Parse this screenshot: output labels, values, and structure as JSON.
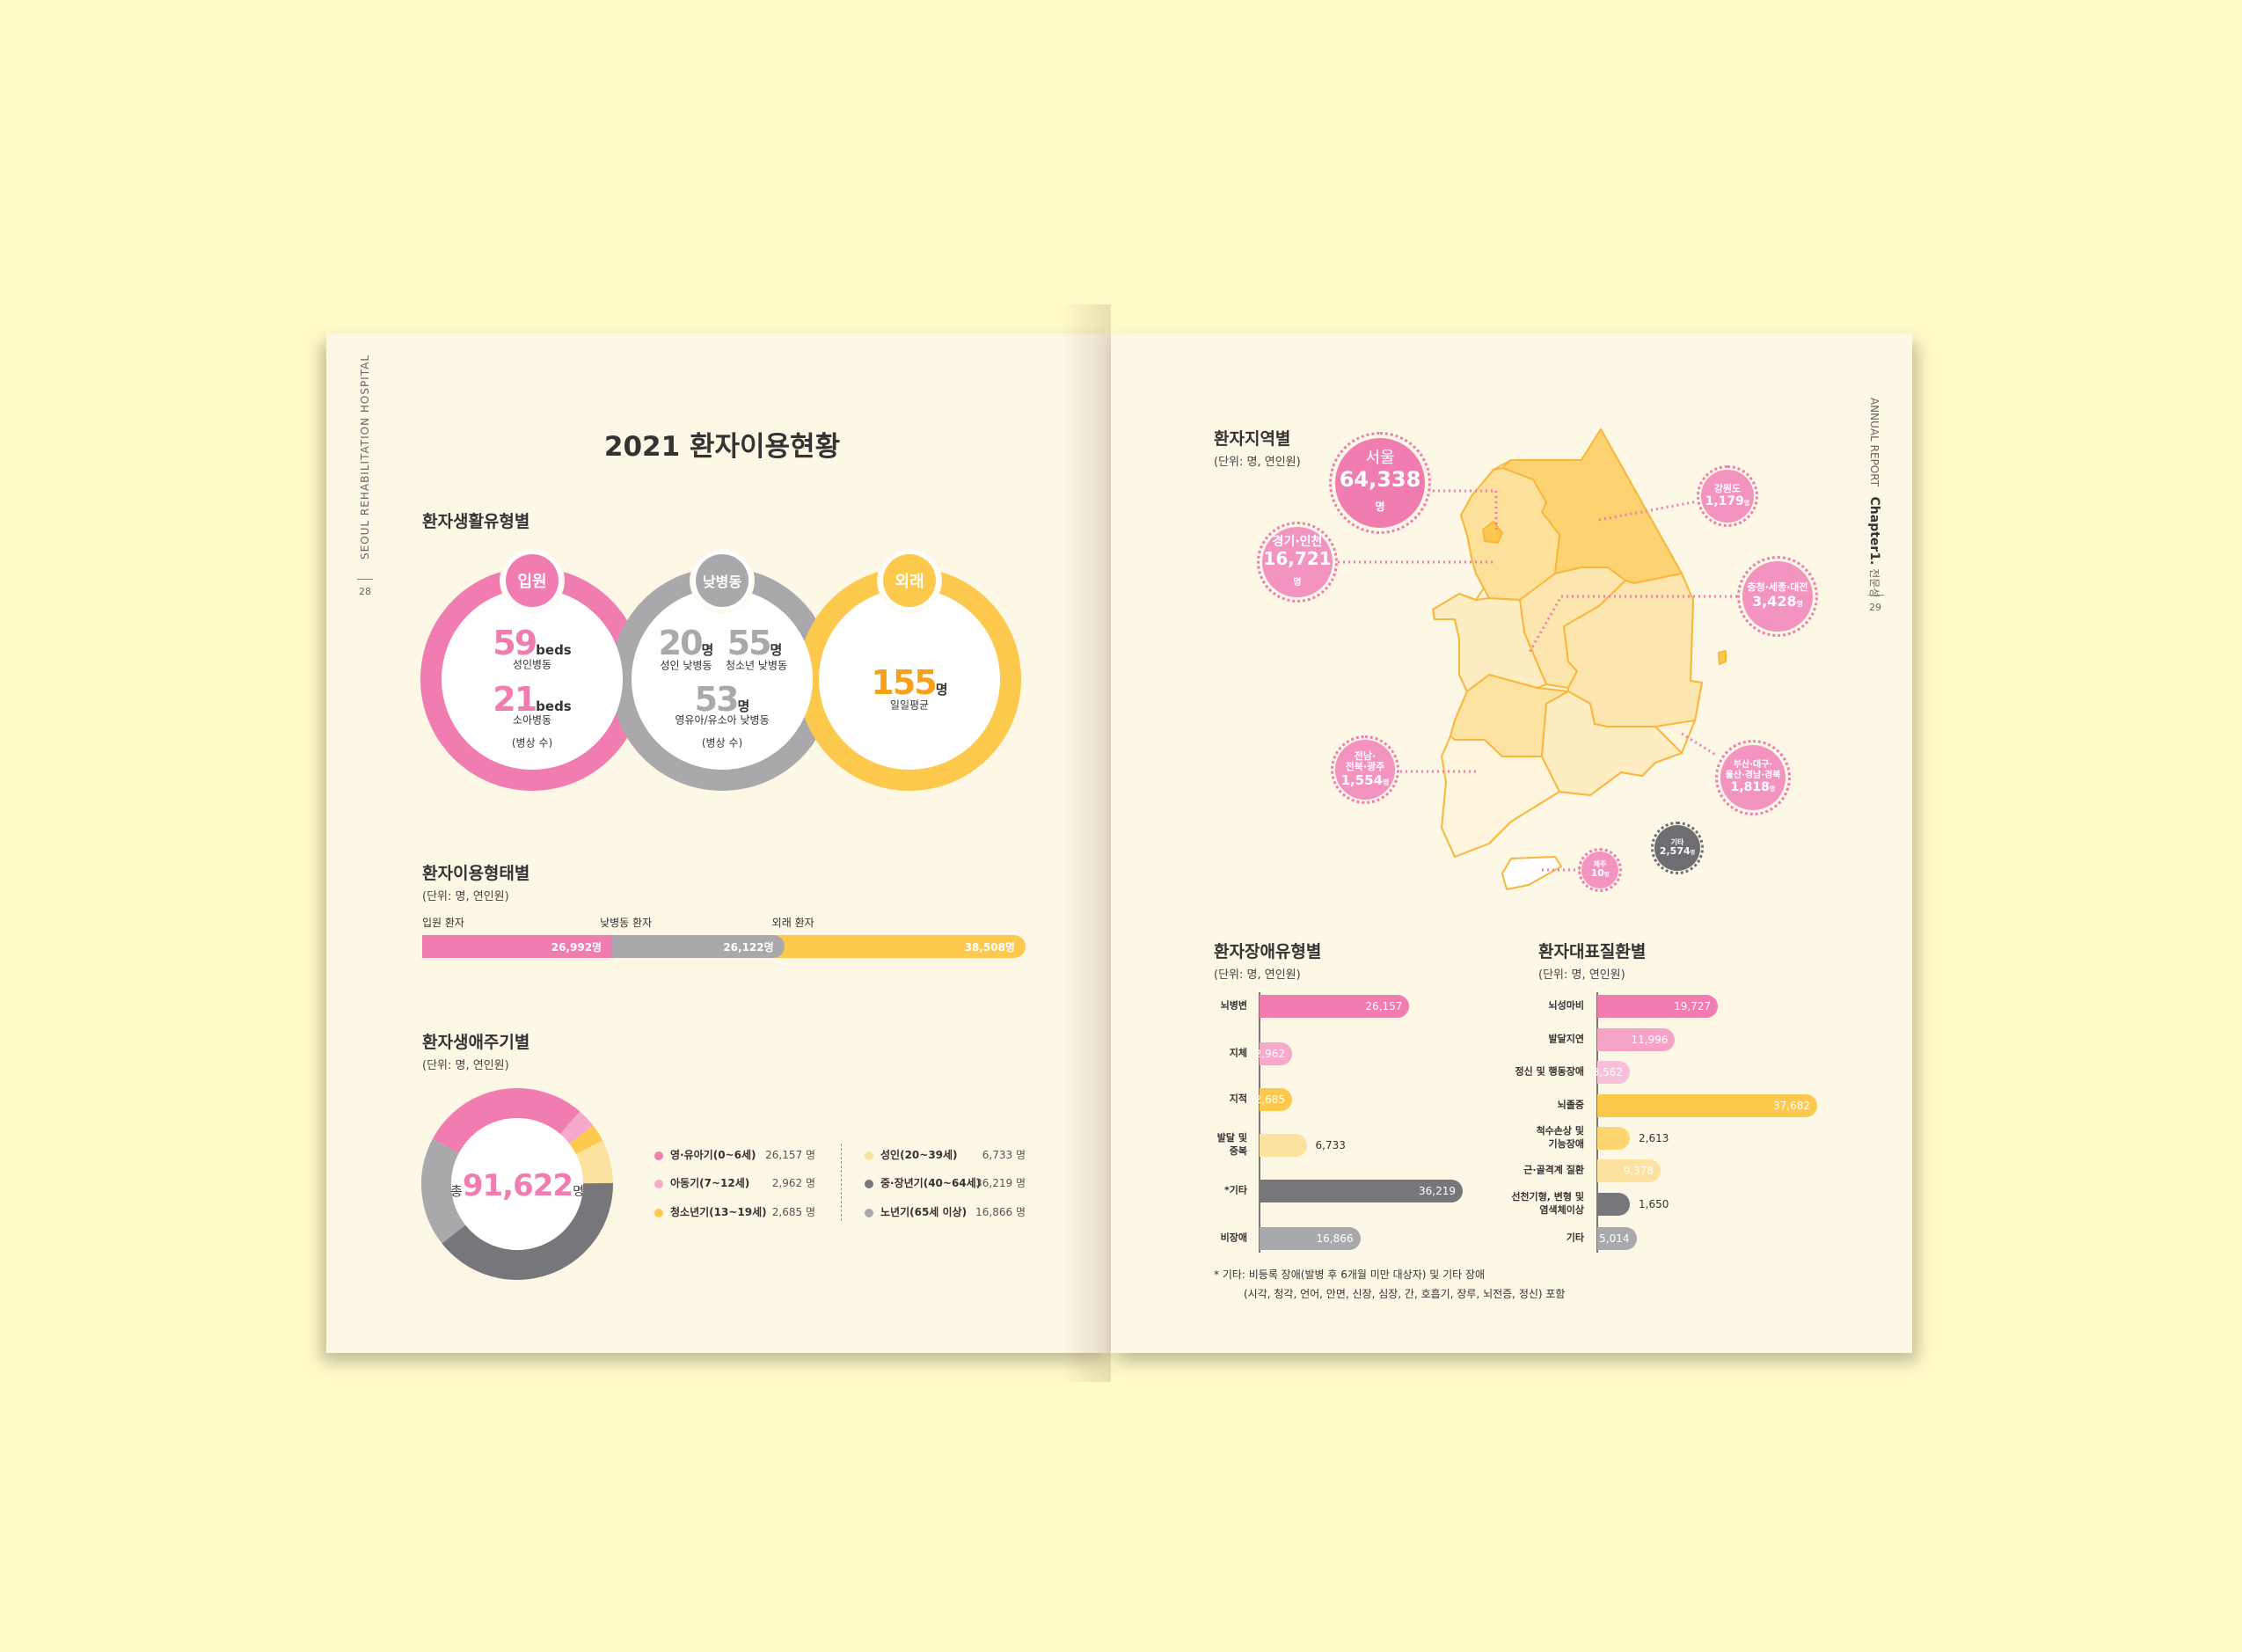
{
  "left_page": {
    "side_text": "SEOUL REHABILITATION HOSPITAL",
    "page_number": "28",
    "title": "2021 환자이용현황",
    "living_type": {
      "heading": "환자생활유형별",
      "inpatient": {
        "badge": "입원",
        "items": [
          {
            "value": "59",
            "suffix": "beds",
            "label": "성인병동"
          },
          {
            "value": "21",
            "suffix": "beds",
            "label": "소아병동"
          }
        ],
        "note": "(병상 수)"
      },
      "daycare": {
        "badge": "낮병동",
        "items": [
          {
            "value": "20",
            "suffix": "명",
            "label": "성인 낮병동"
          },
          {
            "value": "55",
            "suffix": "명",
            "label": "청소년 낮병동"
          },
          {
            "value": "53",
            "suffix": "명",
            "label": "영유아/유소아 낮병동"
          }
        ],
        "note": "(병상 수)"
      },
      "outpatient": {
        "badge": "외래",
        "value": "155",
        "suffix": "명",
        "label": "일일평균"
      }
    },
    "usage_type": {
      "heading": "환자이용형태별",
      "unit": "(단위: 명, 연인원)",
      "segments": [
        {
          "label": "입원 환자",
          "value": 26992,
          "display": "26,992명",
          "color": "#f07cb0"
        },
        {
          "label": "낮병동 환자",
          "value": 26122,
          "display": "26,122명",
          "color": "#a9a9ac"
        },
        {
          "label": "외래 환자",
          "value": 38508,
          "display": "38,508명",
          "color": "#fcc94c"
        }
      ]
    },
    "life_cycle": {
      "heading": "환자생애주기별",
      "unit": "(단위: 명, 연인원)",
      "total_prefix": "총",
      "total": "91,622",
      "total_suffix": "명",
      "legend": [
        {
          "label": "영·유아기(0~6세)",
          "value": 26157,
          "display": "26,157 명",
          "color": "#f07cb0"
        },
        {
          "label": "아동기(7~12세)",
          "value": 2962,
          "display": "2,962 명",
          "color": "#f5aacb"
        },
        {
          "label": "청소년기(13~19세)",
          "value": 2685,
          "display": "2,685 명",
          "color": "#fcc94c"
        },
        {
          "label": "성인(20~39세)",
          "value": 6733,
          "display": "6,733 명",
          "color": "#fde29f"
        },
        {
          "label": "중·장년기(40~64세)",
          "value": 36219,
          "display": "36,219 명",
          "color": "#77777b"
        },
        {
          "label": "노년기(65세 이상)",
          "value": 16866,
          "display": "16,866 명",
          "color": "#a9a9ac"
        }
      ]
    }
  },
  "right_page": {
    "side_text": "ANNUAL REPORT",
    "chapter": "Chapter1.",
    "chapter_name": "전문성",
    "page_number": "29",
    "region": {
      "heading": "환자지역별",
      "unit": "(단위: 명, 연인원)",
      "bubbles": [
        {
          "name": "서울",
          "value": "64,338",
          "suffix": "명",
          "color": "#f07cb0"
        },
        {
          "name": "경기·인천",
          "value": "16,721",
          "suffix": "명",
          "color": "#f293c0"
        },
        {
          "name": "강원도",
          "value": "1,179",
          "suffix": "명",
          "color": "#f293c0"
        },
        {
          "name": "충청·세종·대전",
          "value": "3,428",
          "suffix": "명",
          "color": "#f293c0"
        },
        {
          "name": "전남·\n전북·광주",
          "value": "1,554",
          "suffix": "명",
          "color": "#f293c0"
        },
        {
          "name": "부산·대구·\n울산·경남·경북",
          "value": "1,818",
          "suffix": "명",
          "color": "#f293c0"
        },
        {
          "name": "기타",
          "value": "2,574",
          "suffix": "명",
          "color": "#6e6e72"
        },
        {
          "name": "제주",
          "value": "10",
          "suffix": "명",
          "color": "#f293c0"
        }
      ]
    },
    "disability": {
      "heading": "환자장애유형별",
      "unit": "(단위: 명, 연인원)",
      "bars": [
        {
          "label": "뇌병변",
          "value": 26157,
          "display": "26,157",
          "color": "#f07cb0"
        },
        {
          "label": "지체",
          "value": 2962,
          "display": "2,962",
          "color": "#f5aacb"
        },
        {
          "label": "지적",
          "value": 2685,
          "display": "2,685",
          "color": "#fcc94c"
        },
        {
          "label": "발달 및\n중복",
          "value": 6733,
          "display": "6,733",
          "color": "#fde29f"
        },
        {
          "label": "*기타",
          "value": 36219,
          "display": "36,219",
          "color": "#77777b"
        },
        {
          "label": "비장애",
          "value": 16866,
          "display": "16,866",
          "color": "#a9a9ac"
        }
      ],
      "footnote_1": "* 기타: 비등록 장애(발병 후 6개월 미만 대상자) 및 기타 장애",
      "footnote_2": "(시각, 청각, 언어, 안면, 신장, 심장, 간, 호흡기, 장루, 뇌전증, 정신) 포함"
    },
    "disease": {
      "heading": "환자대표질환별",
      "unit": "(단위: 명, 연인원)",
      "bars": [
        {
          "label": "뇌성마비",
          "value": 19727,
          "display": "19,727",
          "color": "#f07cb0"
        },
        {
          "label": "발달지연",
          "value": 11996,
          "display": "11,996",
          "color": "#f5a3c7"
        },
        {
          "label": "정신 및 행동장애",
          "value": 3562,
          "display": "3,562",
          "color": "#f7bfd8"
        },
        {
          "label": "뇌졸중",
          "value": 37682,
          "display": "37,682",
          "color": "#fcc94c"
        },
        {
          "label": "척수손상 및\n기능장애",
          "value": 2613,
          "display": "2,613",
          "color": "#fdd66f"
        },
        {
          "label": "근·골격계 질환",
          "value": 9378,
          "display": "9,378",
          "color": "#fde29f"
        },
        {
          "label": "선천기형, 변형 및\n염색체이상",
          "value": 1650,
          "display": "1,650",
          "color": "#77777b"
        },
        {
          "label": "기타",
          "value": 5014,
          "display": "5,014",
          "color": "#a9a9ac"
        }
      ]
    }
  }
}
